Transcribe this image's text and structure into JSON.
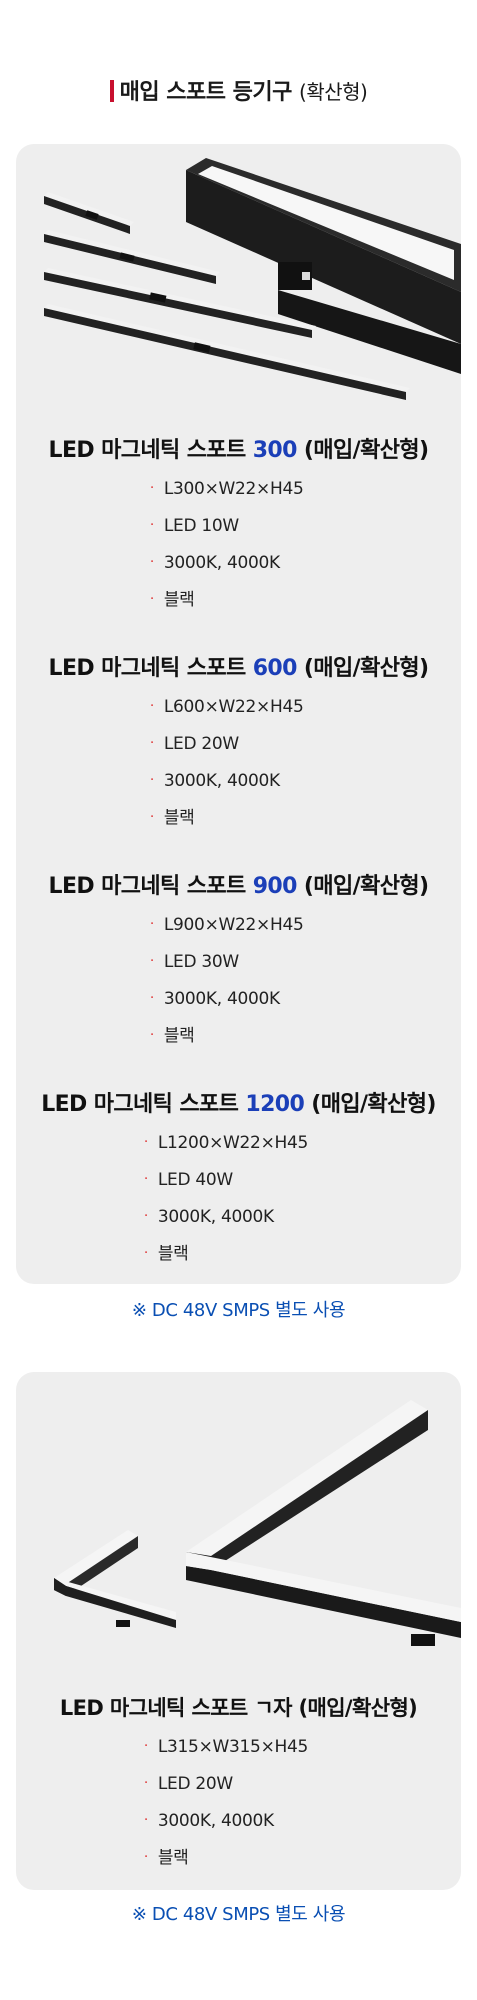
{
  "header": {
    "title": "매입 스포트 등기구",
    "subtitle": "(확산형)"
  },
  "colors": {
    "accent_bar": "#c8102e",
    "number_highlight": "#1b3fb8",
    "note_text": "#0a4fb3",
    "card_bg": "#eeeeee"
  },
  "products": [
    {
      "title_prefix": "LED 마그네틱 스포트 ",
      "number": "300",
      "title_suffix": " (매입/확산형)",
      "specs": [
        "L300×W22×H45",
        "LED 10W",
        "3000K, 4000K",
        "블랙"
      ]
    },
    {
      "title_prefix": "LED 마그네틱 스포트 ",
      "number": "600",
      "title_suffix": " (매입/확산형)",
      "specs": [
        "L600×W22×H45",
        "LED 20W",
        "3000K, 4000K",
        "블랙"
      ]
    },
    {
      "title_prefix": "LED 마그네틱 스포트 ",
      "number": "900",
      "title_suffix": " (매입/확산형)",
      "specs": [
        "L900×W22×H45",
        "LED 30W",
        "3000K, 4000K",
        "블랙"
      ]
    },
    {
      "title_prefix": "LED 마그네틱 스포트 ",
      "number": "1200",
      "title_suffix": " (매입/확산형)",
      "specs": [
        "L1200×W22×H45",
        "LED 40W",
        "3000K, 4000K",
        "블랙"
      ]
    }
  ],
  "note1": "※ DC 48V  SMPS 별도 사용",
  "corner_product": {
    "title": "LED 마그네틱 스포트 ㄱ자  (매입/확산형)",
    "specs": [
      "L315×W315×H45",
      "LED 20W",
      "3000K, 4000K",
      "블랙"
    ]
  },
  "note2": "※ DC 48V  SMPS 별도 사용"
}
